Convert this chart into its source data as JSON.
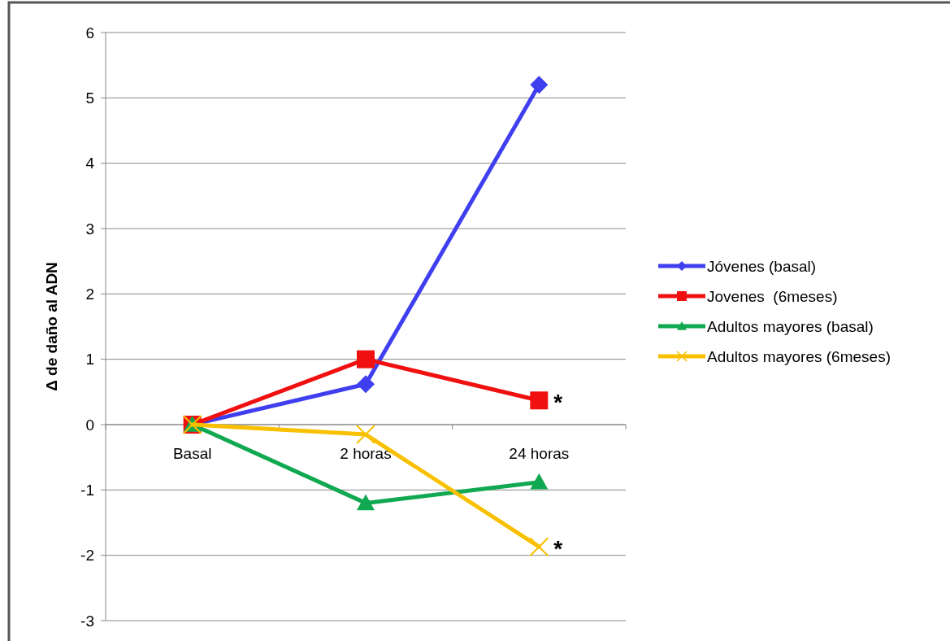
{
  "chart_data": {
    "type": "line",
    "ylabel": "Δ de daño al ADN",
    "categories": [
      "Basal",
      "2 horas",
      "24 horas"
    ],
    "series": [
      {
        "name": "Jóvenes (basal)",
        "color": "#3f3ff0",
        "marker": "diamond",
        "values": [
          0,
          0.62,
          5.2
        ]
      },
      {
        "name": "Jovenes  (6meses)",
        "color": "#f01010",
        "marker": "square",
        "values": [
          0,
          1.0,
          0.37
        ]
      },
      {
        "name": "Adultos mayores (basal)",
        "color": "#10a850",
        "marker": "triangle",
        "values": [
          0,
          -1.2,
          -0.88
        ]
      },
      {
        "name": "Adultos mayores (6meses)",
        "color": "#f8c000",
        "marker": "cross",
        "values": [
          0,
          -0.15,
          -1.87
        ]
      }
    ],
    "ylim": [
      -3,
      6
    ],
    "yticks": [
      -3,
      -2,
      -1,
      0,
      1,
      2,
      3,
      4,
      5,
      6
    ],
    "grid": "y",
    "legend": "right",
    "annotations": [
      {
        "text": "*",
        "x": "24 horas",
        "y": 0.37
      },
      {
        "text": "*",
        "x": "24 horas",
        "y": -1.87
      }
    ]
  }
}
